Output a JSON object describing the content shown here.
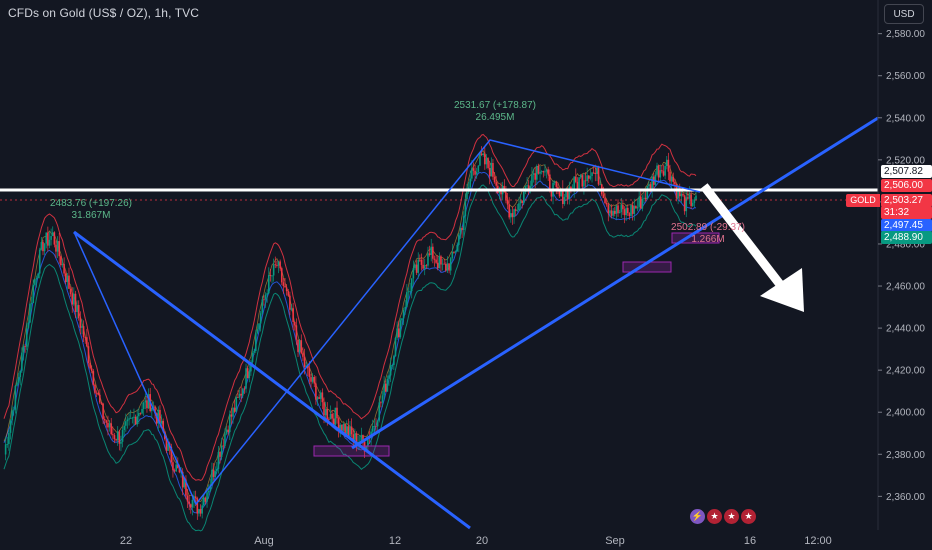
{
  "header": {
    "title": "CFDs on Gold (US$ / OZ), 1h, TVC",
    "currency_button": "USD"
  },
  "price_labels": {
    "level_white": {
      "value": "2,507.82",
      "bg": "#ffffff",
      "fg": "#131722"
    },
    "level_red": {
      "value": "2,506.00",
      "bg": "#f23645",
      "fg": "#ffffff"
    },
    "current": {
      "symbol": "GOLD",
      "value": "2,503.27",
      "countdown": "31:32",
      "bg": "#f23645",
      "fg": "#ffffff"
    },
    "level_blue": {
      "value": "2,497.45",
      "bg": "#2962ff",
      "fg": "#ffffff"
    },
    "level_green": {
      "value": "2,488.90",
      "bg": "#089981",
      "fg": "#ffffff"
    }
  },
  "annotations": {
    "high_1": {
      "line1": "2531.67 (+178.87)",
      "line2": "26.495M"
    },
    "high_2": {
      "line1": "2483.76 (+197.26)",
      "line2": "31.867M"
    },
    "low_recent": {
      "line1": "2502.89 (-29.37)",
      "line2": "1.266M"
    }
  },
  "status_icons": [
    "lightning-icon",
    "us-flag-icon",
    "us-flag-icon",
    "us-flag-icon"
  ],
  "colors": {
    "background": "#131722",
    "trendline": "#2962ff",
    "arrow": "#ffffff",
    "resistance": "#ffffff",
    "candle_up": "#089981",
    "candle_down": "#f23645",
    "band_outer": "#f23645",
    "band_inner": "#089981",
    "box": "#9c27b0"
  },
  "chart_data": {
    "type": "line",
    "title": "CFDs on Gold (US$ / OZ), 1h, TVC",
    "xlabel": "",
    "ylabel": "",
    "ylim": [
      2344,
      2596
    ],
    "y_ticks": [
      "2,360.00",
      "2,380.00",
      "2,400.00",
      "2,420.00",
      "2,440.00",
      "2,460.00",
      "2,480.00",
      "2,500.00",
      "2,520.00",
      "2,540.00",
      "2,560.00",
      "2,580.00"
    ],
    "x_ticks": [
      "22",
      "Aug",
      "12",
      "20",
      "Sep",
      "16",
      "12:00"
    ],
    "grid": false,
    "series": [
      {
        "values": [
          2380,
          2405,
          2430,
          2460,
          2480,
          2484,
          2470,
          2455,
          2440,
          2420,
          2400,
          2390,
          2388,
          2395,
          2402,
          2405,
          2395,
          2380,
          2370,
          2360,
          2354,
          2365,
          2380,
          2395,
          2405,
          2420,
          2440,
          2460,
          2470,
          2455,
          2435,
          2420,
          2410,
          2400,
          2398,
          2392,
          2387,
          2385,
          2395,
          2410,
          2430,
          2450,
          2465,
          2472,
          2475,
          2468,
          2472,
          2490,
          2515,
          2520,
          2515,
          2505,
          2495,
          2500,
          2512,
          2518,
          2508,
          2502,
          2506,
          2510,
          2515,
          2512,
          2498,
          2495,
          2495,
          2498,
          2505,
          2515,
          2518,
          2506,
          2498,
          2503
        ]
      }
    ],
    "resistance_level": 2506.5,
    "annotated_points": [
      {
        "label": "2531.67 (+178.87)",
        "volume": "26.495M",
        "value": 2531.67
      },
      {
        "label": "2483.76 (+197.26)",
        "volume": "31.867M",
        "value": 2483.76
      },
      {
        "label": "2502.89 (-29.37)",
        "volume": "1.266M",
        "value": 2502.89
      }
    ]
  }
}
